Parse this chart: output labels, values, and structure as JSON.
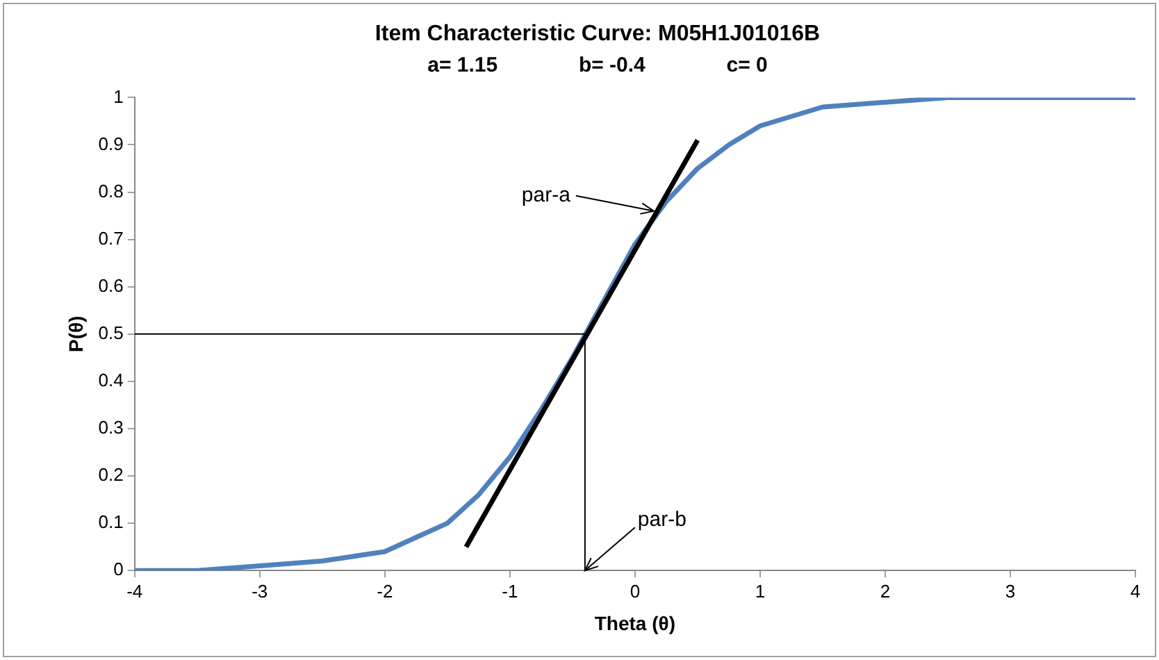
{
  "chart_data": {
    "type": "line",
    "title": "Item Characteristic Curve: M05H1J01016B",
    "subtitle": "a= 1.15              b= -0.4              c= 0",
    "xlabel": "Theta (θ)",
    "ylabel": "P(θ)",
    "xlim": [
      -4,
      4
    ],
    "xticks": [
      -4,
      -3,
      -2,
      -1,
      0,
      1,
      2,
      3,
      4
    ],
    "ylim": [
      0,
      1
    ],
    "yticks": [
      0,
      0.1,
      0.2,
      0.3,
      0.4,
      0.5,
      0.6,
      0.7,
      0.8,
      0.9,
      1
    ],
    "grid": false,
    "legend": false,
    "marker": "none",
    "line_style": "solid",
    "series": [
      {
        "color": "#4f81bd",
        "x": [
          -4,
          -3.5,
          -3,
          -2.5,
          -2,
          -1.75,
          -1.5,
          -1.25,
          -1,
          -0.75,
          -0.5,
          -0.25,
          0,
          0.25,
          0.5,
          0.75,
          1,
          1.5,
          2,
          2.5,
          3,
          3.5,
          4
        ],
        "values": [
          0,
          0,
          0.01,
          0.02,
          0.04,
          0.07,
          0.1,
          0.16,
          0.24,
          0.34,
          0.45,
          0.57,
          0.69,
          0.78,
          0.85,
          0.9,
          0.94,
          0.98,
          0.99,
          1,
          1,
          1,
          1
        ]
      },
      {
        "color": "#000000",
        "x": [
          -1.35,
          0.5
        ],
        "values": [
          0.05,
          0.91
        ]
      },
      {
        "color": "#000000",
        "x": [
          -4,
          -0.4,
          -0.4
        ],
        "values": [
          0.5,
          0.5,
          0
        ]
      }
    ],
    "annotations": [
      {
        "text": "par-a",
        "x": 0.15,
        "y": 0.76
      },
      {
        "text": "par-b",
        "x": -0.4,
        "y": 0
      }
    ]
  }
}
